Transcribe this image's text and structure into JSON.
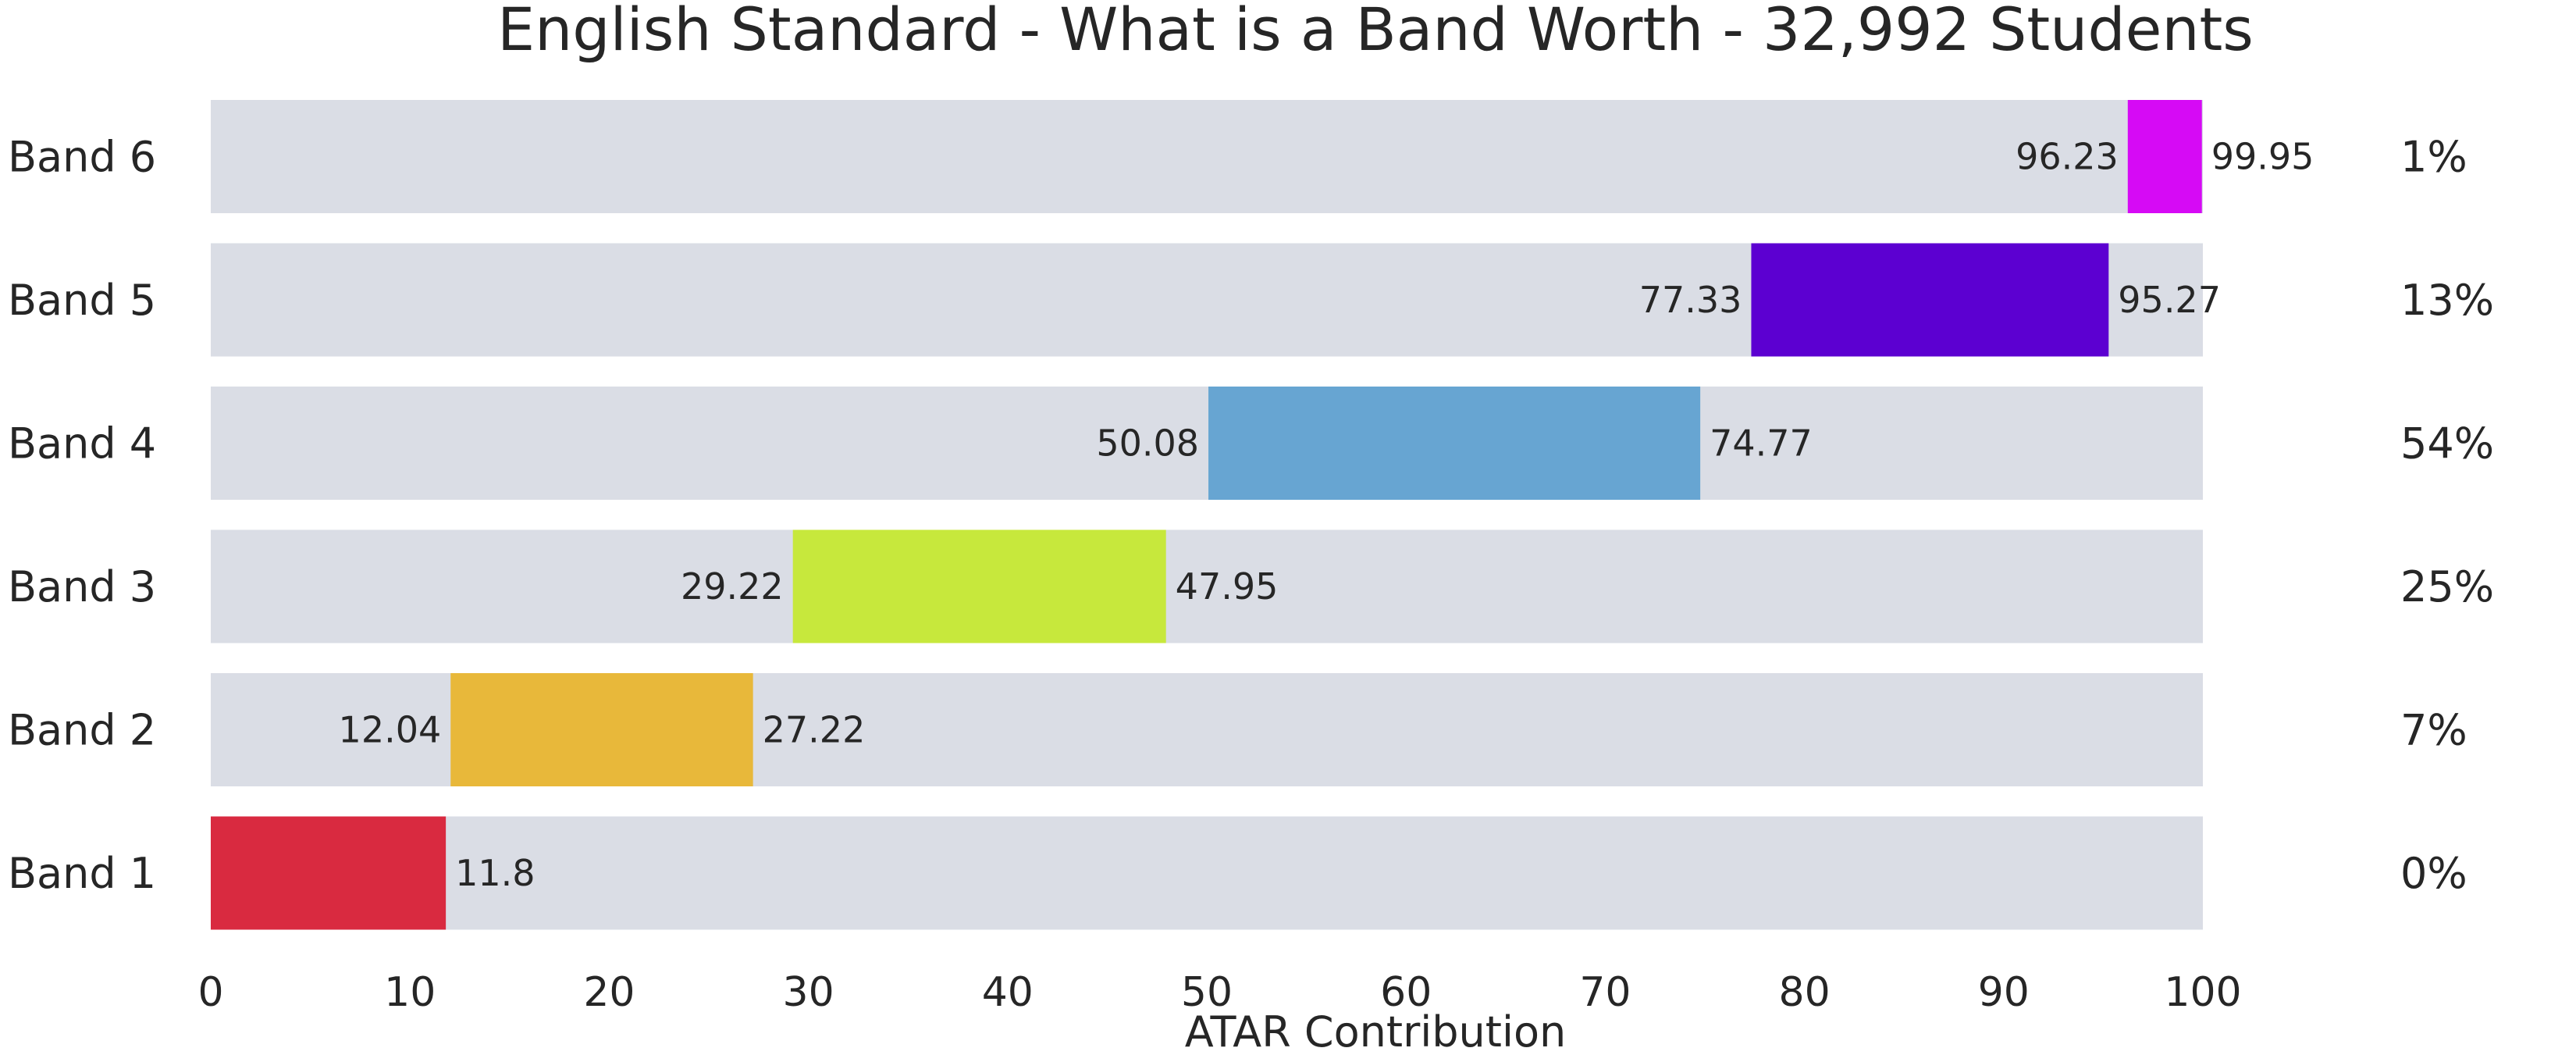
{
  "chart_data": {
    "type": "bar",
    "subtype": "floating-range",
    "title": "English Standard - What is a Band Worth - 32,992 Students",
    "xlabel": "ATAR Contribution",
    "ylabel": "",
    "xlim": [
      0,
      100
    ],
    "xticks": [
      0,
      10,
      20,
      30,
      40,
      50,
      60,
      70,
      80,
      90,
      100
    ],
    "grid": false,
    "background_track_color": "#dadde5",
    "categories": [
      "Band 6",
      "Band 5",
      "Band 4",
      "Band 3",
      "Band 2",
      "Band 1"
    ],
    "series": [
      {
        "start": [
          96.23,
          77.33,
          50.08,
          29.22,
          12.04,
          0
        ],
        "end": [
          99.95,
          95.27,
          74.77,
          47.95,
          27.22,
          11.8
        ],
        "start_labels": [
          "96.23",
          "77.33",
          "50.08",
          "29.22",
          "12.04",
          ""
        ],
        "end_labels": [
          "99.95",
          "95.27",
          "74.77",
          "47.95",
          "27.22",
          "11.8"
        ],
        "colors": [
          "#d60af5",
          "#5c00d1",
          "#67a5d2",
          "#c7e83c",
          "#e8b83a",
          "#d92a40"
        ]
      }
    ],
    "percentages": [
      "1%",
      "13%",
      "54%",
      "25%",
      "7%",
      "0%"
    ]
  }
}
